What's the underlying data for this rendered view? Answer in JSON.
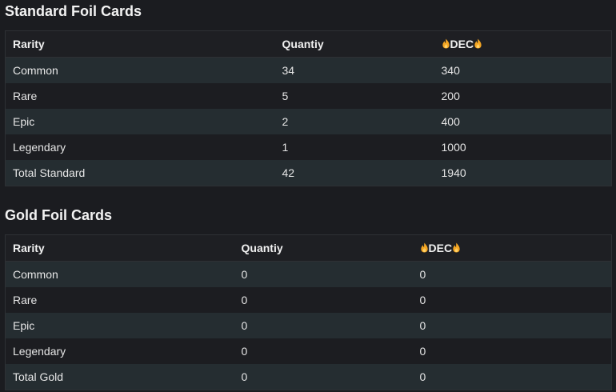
{
  "standard": {
    "title": "Standard Foil Cards",
    "headers": {
      "rarity": "Rarity",
      "quantity": "Quantiy",
      "dec": "DEC"
    },
    "rows": [
      {
        "rarity": "Common",
        "quantity": "34",
        "dec": "340"
      },
      {
        "rarity": "Rare",
        "quantity": "5",
        "dec": "200"
      },
      {
        "rarity": "Epic",
        "quantity": "2",
        "dec": "400"
      },
      {
        "rarity": "Legendary",
        "quantity": "1",
        "dec": "1000"
      },
      {
        "rarity": "Total Standard",
        "quantity": "42",
        "dec": "1940"
      }
    ]
  },
  "gold": {
    "title": "Gold Foil Cards",
    "headers": {
      "rarity": "Rarity",
      "quantity": "Quantiy",
      "dec": "DEC"
    },
    "rows": [
      {
        "rarity": "Common",
        "quantity": "0",
        "dec": "0"
      },
      {
        "rarity": "Rare",
        "quantity": "0",
        "dec": "0"
      },
      {
        "rarity": "Epic",
        "quantity": "0",
        "dec": "0"
      },
      {
        "rarity": "Legendary",
        "quantity": "0",
        "dec": "0"
      },
      {
        "rarity": "Total Gold",
        "quantity": "0",
        "dec": "0"
      }
    ]
  },
  "icons": {
    "dec_header": "flame-icon"
  },
  "colors": {
    "background": "#1b1c20",
    "row_alt": "#252d31",
    "flame": "#f5a623"
  }
}
